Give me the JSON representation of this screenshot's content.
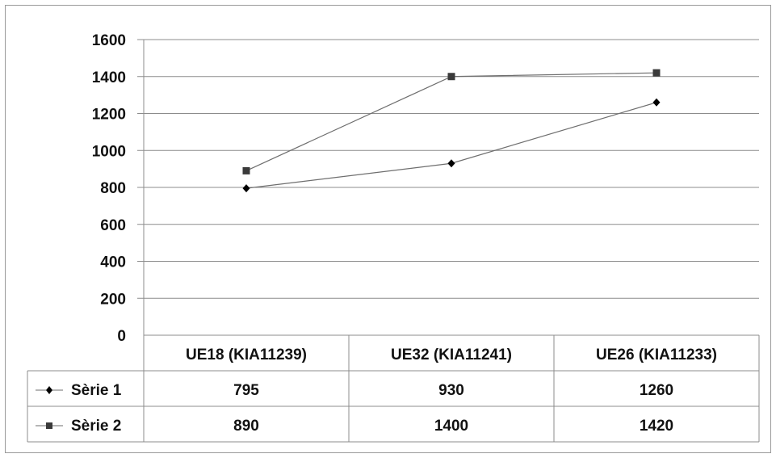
{
  "chart_data": {
    "type": "line",
    "categories": [
      "UE18 (KIA11239)",
      "UE32 (KIA11241)",
      "UE26 (KIA11233)"
    ],
    "series": [
      {
        "name": "Sèrie 1",
        "marker": "diamond",
        "color": "#000000",
        "values": [
          795,
          930,
          1260
        ]
      },
      {
        "name": "Sèrie 2",
        "marker": "square",
        "color": "#3a3a3a",
        "values": [
          890,
          1400,
          1420
        ]
      }
    ],
    "y_ticks": [
      "0",
      "200",
      "400",
      "600",
      "800",
      "1000",
      "1200",
      "1400",
      "1600"
    ],
    "ylim": [
      0,
      1600
    ],
    "grid": true,
    "data_table": true,
    "table_values": [
      [
        "795",
        "930",
        "1260"
      ],
      [
        "890",
        "1400",
        "1420"
      ]
    ],
    "colors": {
      "gridline": "#8c8c8c",
      "line": "#6e6e6e",
      "frame": "#9a9a9a"
    }
  }
}
